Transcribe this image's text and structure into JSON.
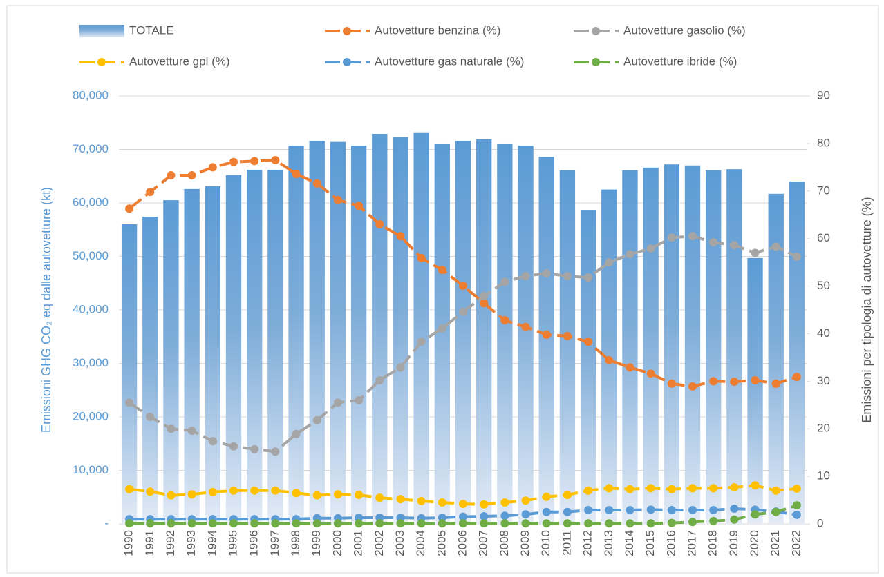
{
  "chart_data": {
    "type": "combo",
    "y_label": "Emissioni GHG CO₂ eq dalle autovetture (kt)",
    "y2_label": "Emissioni per tipologia di autovetture (%)",
    "categories": [
      "1990",
      "1991",
      "1992",
      "1993",
      "1994",
      "1995",
      "1996",
      "1997",
      "1998",
      "1999",
      "2000",
      "2001",
      "2002",
      "2003",
      "2004",
      "2005",
      "2006",
      "2007",
      "2008",
      "2009",
      "2010",
      "2011",
      "2012",
      "2013",
      "2014",
      "2015",
      "2016",
      "2017",
      "2018",
      "2019",
      "2020",
      "2021",
      "2022"
    ],
    "ylim": [
      0,
      80000
    ],
    "yticks": [
      {
        "value": 0,
        "label": "-"
      },
      {
        "value": 10000,
        "label": "10,000"
      },
      {
        "value": 20000,
        "label": "20,000"
      },
      {
        "value": 30000,
        "label": "30,000"
      },
      {
        "value": 40000,
        "label": "40,000"
      },
      {
        "value": 50000,
        "label": "50,000"
      },
      {
        "value": 60000,
        "label": "60,000"
      },
      {
        "value": 70000,
        "label": "70,000"
      },
      {
        "value": 80000,
        "label": "80,000"
      }
    ],
    "y2lim": [
      0,
      90
    ],
    "y2ticks": [
      0,
      10,
      20,
      30,
      40,
      50,
      60,
      70,
      80,
      90
    ],
    "grid": true,
    "series": [
      {
        "name": "TOTALE",
        "type": "bar",
        "color": "#5b9bd5",
        "values": [
          56000,
          57400,
          60500,
          62600,
          63100,
          65200,
          66200,
          66200,
          70700,
          71600,
          71400,
          70700,
          72900,
          72300,
          73200,
          71100,
          71600,
          71900,
          71100,
          70700,
          68600,
          66100,
          58700,
          62500,
          66100,
          66600,
          67200,
          67000,
          66100,
          66300,
          49700,
          61700,
          64000
        ]
      },
      {
        "name": "Autovetture benzina (%)",
        "type": "line",
        "axis": "y2",
        "color": "#ed7d31",
        "values": [
          66.3,
          69.8,
          73.3,
          73.3,
          75.0,
          76.1,
          76.3,
          76.5,
          73.6,
          71.6,
          68.1,
          66.9,
          63.0,
          60.5,
          55.9,
          53.4,
          50.1,
          46.4,
          42.8,
          41.4,
          39.8,
          39.5,
          38.3,
          34.4,
          32.9,
          31.6,
          29.5,
          28.9,
          30.0,
          29.9,
          30.2,
          29.5,
          30.9
        ]
      },
      {
        "name": "Autovetture gasolio (%)",
        "type": "line",
        "axis": "y2",
        "color": "#a5a5a5",
        "values": [
          25.5,
          22.5,
          20.0,
          19.6,
          17.4,
          16.3,
          15.7,
          15.2,
          18.9,
          21.8,
          25.5,
          26.0,
          30.2,
          32.9,
          38.3,
          41.1,
          44.6,
          47.9,
          50.9,
          52.1,
          52.7,
          52.1,
          51.8,
          55.0,
          56.7,
          57.9,
          60.2,
          60.5,
          59.2,
          58.6,
          57.0,
          58.3,
          56.2
        ]
      },
      {
        "name": "Autovetture gpl (%)",
        "type": "line",
        "axis": "y2",
        "color": "#ffc000",
        "values": [
          7.3,
          6.8,
          6.0,
          6.2,
          6.7,
          7.0,
          7.0,
          7.0,
          6.5,
          6.0,
          6.2,
          6.1,
          5.5,
          5.2,
          4.8,
          4.5,
          4.2,
          4.1,
          4.5,
          4.9,
          5.7,
          6.1,
          7.0,
          7.5,
          7.3,
          7.5,
          7.3,
          7.5,
          7.5,
          7.7,
          8.1,
          7.0,
          7.4
        ]
      },
      {
        "name": "Autovetture gas naturale (%)",
        "type": "line",
        "axis": "y2",
        "color": "#5b9bd5",
        "values": [
          1.0,
          1.0,
          1.0,
          1.0,
          1.0,
          1.0,
          1.0,
          1.0,
          1.0,
          1.2,
          1.2,
          1.3,
          1.3,
          1.3,
          1.2,
          1.3,
          1.5,
          1.6,
          1.7,
          2.0,
          2.5,
          2.5,
          2.9,
          2.9,
          2.9,
          3.0,
          2.9,
          2.9,
          2.9,
          3.2,
          3.0,
          2.6,
          1.9
        ]
      },
      {
        "name": "Autovetture ibride (%)",
        "type": "line",
        "axis": "y2",
        "color": "#70ad47",
        "values": [
          0.1,
          0.1,
          0.1,
          0.1,
          0.1,
          0.1,
          0.1,
          0.1,
          0.1,
          0.1,
          0.1,
          0.1,
          0.1,
          0.1,
          0.1,
          0.1,
          0.1,
          0.1,
          0.1,
          0.1,
          0.1,
          0.1,
          0.1,
          0.1,
          0.1,
          0.1,
          0.2,
          0.4,
          0.6,
          0.9,
          2.0,
          2.5,
          3.9
        ]
      }
    ]
  }
}
